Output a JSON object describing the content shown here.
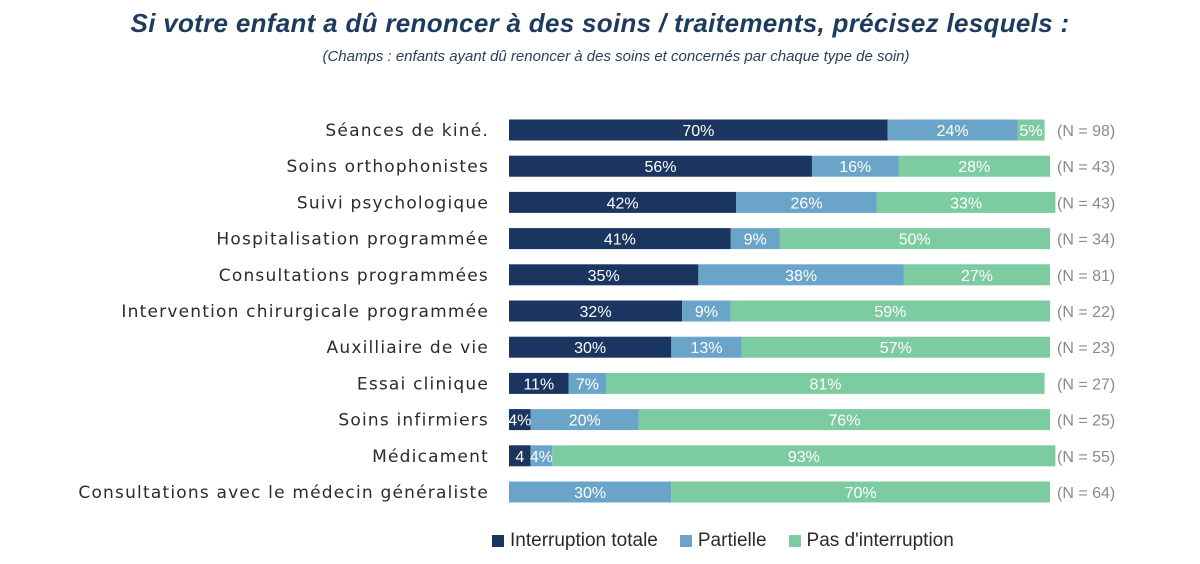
{
  "chart_data": {
    "type": "bar",
    "orientation": "horizontal",
    "stacked": true,
    "title": "Si votre enfant a dû renoncer à des soins / traitements, précisez lesquels :",
    "subtitle": "(Champs : enfants ayant dû renoncer à des soins et concernés par chaque type de soin)",
    "categories": [
      "Séances de kiné.",
      "Soins orthophonistes",
      "Suivi psychologique",
      "Hospitalisation programmée",
      "Consultations programmées",
      "Intervention chirurgicale programmée",
      "Auxilliaire de vie",
      "Essai clinique",
      "Soins infirmiers",
      "Médicament",
      "Consultations avec le médecin généraliste"
    ],
    "n_labels": [
      "(N = 98)",
      "(N = 43)",
      "(N = 43)",
      "(N = 34)",
      "(N = 81)",
      "(N = 22)",
      "(N = 23)",
      "(N = 27)",
      "(N = 25)",
      "(N = 55)",
      "(N = 64)"
    ],
    "series": [
      {
        "name": "Interruption totale",
        "color": "#1a3560",
        "values": [
          70,
          56,
          42,
          41,
          35,
          32,
          30,
          11,
          4,
          4,
          0
        ],
        "labels": [
          "70%",
          "56%",
          "42%",
          "41%",
          "35%",
          "32%",
          "30%",
          "11%",
          "4%",
          "4",
          ""
        ]
      },
      {
        "name": "Partielle",
        "color": "#6aa5c9",
        "values": [
          24,
          16,
          26,
          9,
          38,
          9,
          13,
          7,
          20,
          4,
          30
        ],
        "labels": [
          "24%",
          "16%",
          "26%",
          "9%",
          "38%",
          "9%",
          "13%",
          "7%",
          "20%",
          "4%",
          "30%"
        ]
      },
      {
        "name": "Pas d'interruption",
        "color": "#7dcba0",
        "values": [
          5,
          28,
          33,
          50,
          27,
          59,
          57,
          81,
          76,
          93,
          70
        ],
        "labels": [
          "5%",
          "28%",
          "33%",
          "50%",
          "27%",
          "59%",
          "57%",
          "81%",
          "76%",
          "93%",
          "70%"
        ]
      }
    ],
    "xlim": [
      0,
      100
    ],
    "grid": false,
    "legend_position": "bottom"
  }
}
